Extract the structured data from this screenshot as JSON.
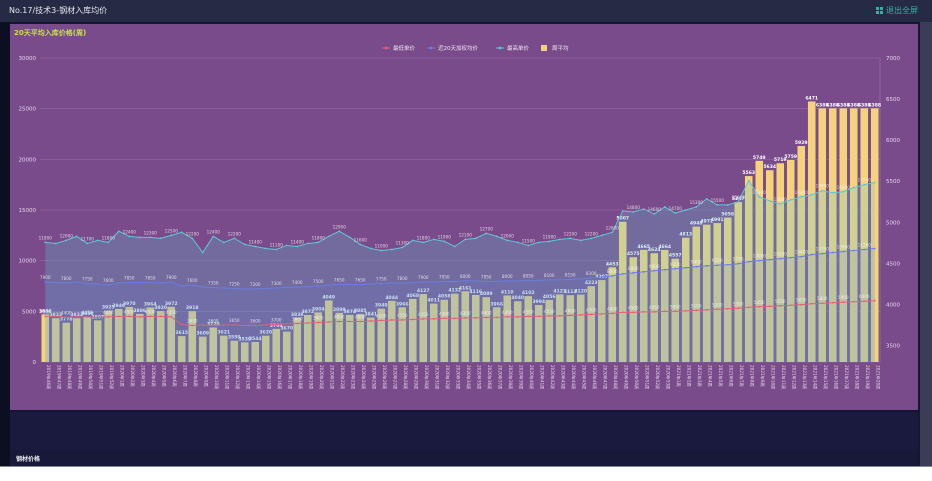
{
  "window": {
    "title": "No.17/技术3-钢材入库均价",
    "exit_label": "退出全屏",
    "exit_icon": "fullscreen-exit-icon"
  },
  "panel": {
    "title": "20天平均入库价格(周)"
  },
  "lower_panel": {
    "title": "钢材价格"
  },
  "colors": {
    "panel_bg": "#7a4b8b",
    "bar": "#f5d37a",
    "min_line": "#e0607a",
    "avg20_line": "#6a7de0",
    "max_line": "#5fc7d6"
  },
  "chart_data": {
    "type": "bar",
    "title": "20天平均入库价格(周)",
    "legend": [
      "最低单价",
      "近20天加权均价",
      "最高单价",
      "周平均"
    ],
    "legend_position": "top-center",
    "y_left": {
      "min": 0,
      "max": 30000,
      "ticks": [
        "0",
        "5000",
        "10000",
        "15000",
        "20000",
        "25000",
        "30000"
      ]
    },
    "y_right": {
      "min": 3300,
      "max": 7000,
      "ticks": [
        "3500",
        "4000",
        "4500",
        "5000",
        "5500",
        "6000",
        "6500",
        "7000"
      ]
    },
    "grid": true,
    "categories": [
      "2019年46周",
      "2019年47周",
      "2019年48周",
      "2019年49周",
      "2019年50周",
      "2019年51周",
      "2019年52周",
      "2020年1周",
      "2020年2周",
      "2020年3周",
      "2020年4周",
      "2020年5周",
      "2020年6周",
      "2020年7周",
      "2020年8周",
      "2020年9周",
      "2020年10周",
      "2020年11周",
      "2020年12周",
      "2020年13周",
      "2020年14周",
      "2020年15周",
      "2020年16周",
      "2020年17周",
      "2020年18周",
      "2020年19周",
      "2020年20周",
      "2020年21周",
      "2020年22周",
      "2020年23周",
      "2020年24周",
      "2020年25周",
      "2020年26周",
      "2020年27周",
      "2020年28周",
      "2020年29周",
      "2020年30周",
      "2020年31周",
      "2020年32周",
      "2020年33周",
      "2020年34周",
      "2020年35周",
      "2020年36周",
      "2020年37周",
      "2020年38周",
      "2020年39周",
      "2020年40周",
      "2020年41周",
      "2020年42周",
      "2020年43周",
      "2020年44周",
      "2020年45周",
      "2020年46周",
      "2020年47周",
      "2020年48周",
      "2020年49周",
      "2020年50周",
      "2020年51周",
      "2020年52周",
      "2020年53周",
      "2021年1周",
      "2021年2周",
      "2021年3周",
      "2021年4周",
      "2021年5周",
      "2021年6周",
      "2021年7周",
      "2021年8周",
      "2021年9周",
      "2021年10周",
      "2021年11周",
      "2021年12周",
      "2021年13周",
      "2021年14周",
      "2021年15周",
      "2021年16周",
      "2021年17周",
      "2021年18周",
      "2021年19周",
      "2021年20周"
    ],
    "series": [
      {
        "name": "周平均",
        "type": "bar",
        "axis": "right",
        "values": [
          3880,
          3833,
          3778,
          3833,
          3850,
          3807,
          3925,
          3946,
          3970,
          3886,
          3964,
          3920,
          3972,
          3615,
          3918,
          3609,
          3720,
          3621,
          3559,
          3539,
          3544,
          3620,
          3703,
          3670,
          3838,
          3872,
          3904,
          4049,
          3899,
          3874,
          3885,
          3841,
          3949,
          4044,
          3966,
          4068,
          4127,
          4011,
          4058,
          4132,
          4161,
          4116,
          4089,
          3966,
          4110,
          4040,
          4102,
          3994,
          4056,
          4123,
          4113,
          4120,
          4223,
          4297,
          4453,
          5007,
          4575,
          4665,
          4624,
          4664,
          4557,
          4813,
          4948,
          4972,
          4991,
          5058,
          5247,
          5563,
          5749,
          5634,
          5719,
          5759,
          5929,
          6471,
          6388,
          6388,
          6388,
          6388,
          6388,
          6388
        ]
      },
      {
        "name": "最高单价",
        "type": "line",
        "axis": "left",
        "values": [
          11800,
          11700,
          12000,
          12400,
          11700,
          12000,
          11800,
          12900,
          12400,
          12300,
          12300,
          12200,
          12500,
          12800,
          12200,
          10800,
          12400,
          11800,
          12200,
          11600,
          11400,
          11200,
          11100,
          11500,
          11400,
          11700,
          11800,
          12400,
          12900,
          12300,
          11600,
          11200,
          11000,
          11100,
          11300,
          12000,
          11800,
          12100,
          11900,
          11400,
          12100,
          12200,
          12700,
          12400,
          12000,
          11800,
          11500,
          11800,
          11900,
          12100,
          12200,
          12000,
          12200,
          12500,
          12800,
          14900,
          14800,
          15100,
          14600,
          15300,
          14700,
          15000,
          15300,
          16100,
          15500,
          15500,
          15800,
          17900,
          16300,
          15900,
          15600,
          16000,
          16300,
          16500,
          16900,
          16700,
          16800,
          17200,
          17500,
          17700
        ]
      },
      {
        "name": "近20天加权均价",
        "type": "line",
        "axis": "left",
        "values": [
          7900,
          7850,
          7800,
          7900,
          7750,
          7700,
          7600,
          7800,
          7850,
          7850,
          7850,
          7800,
          7900,
          7500,
          7600,
          7400,
          7350,
          7300,
          7250,
          7200,
          7200,
          7250,
          7300,
          7350,
          7400,
          7450,
          7500,
          7600,
          7650,
          7650,
          7650,
          7700,
          7750,
          7800,
          7800,
          7850,
          7900,
          7900,
          7950,
          7950,
          8000,
          8000,
          7950,
          7950,
          8000,
          8000,
          8050,
          8050,
          8100,
          8100,
          8150,
          8200,
          8300,
          8400,
          8500,
          8700,
          8800,
          8900,
          9000,
          9100,
          9200,
          9300,
          9400,
          9500,
          9550,
          9600,
          9700,
          9900,
          10000,
          10100,
          10200,
          10300,
          10400,
          10600,
          10700,
          10800,
          10900,
          11000,
          11100,
          11200
        ]
      },
      {
        "name": "最低单价",
        "type": "line",
        "axis": "left",
        "values": [
          4500,
          4500,
          4400,
          4450,
          4450,
          4400,
          4450,
          4500,
          4500,
          4450,
          4500,
          4500,
          4450,
          3700,
          3600,
          3650,
          3600,
          3650,
          3650,
          3600,
          3600,
          3650,
          3700,
          3750,
          3800,
          3850,
          3900,
          3950,
          4000,
          4000,
          4000,
          4050,
          4100,
          4150,
          4150,
          4200,
          4250,
          4250,
          4300,
          4300,
          4350,
          4350,
          4400,
          4400,
          4450,
          4450,
          4500,
          4500,
          4550,
          4550,
          4600,
          4650,
          4700,
          4750,
          4800,
          4900,
          4900,
          4950,
          4950,
          5000,
          5000,
          5050,
          5100,
          5150,
          5200,
          5250,
          5300,
          5400,
          5450,
          5500,
          5550,
          5600,
          5650,
          5750,
          5800,
          5850,
          5900,
          5950,
          6000,
          6050
        ]
      }
    ],
    "annotations": {
      "max_peak": "17900",
      "last_bars": [
        "6471",
        "6388"
      ]
    }
  }
}
